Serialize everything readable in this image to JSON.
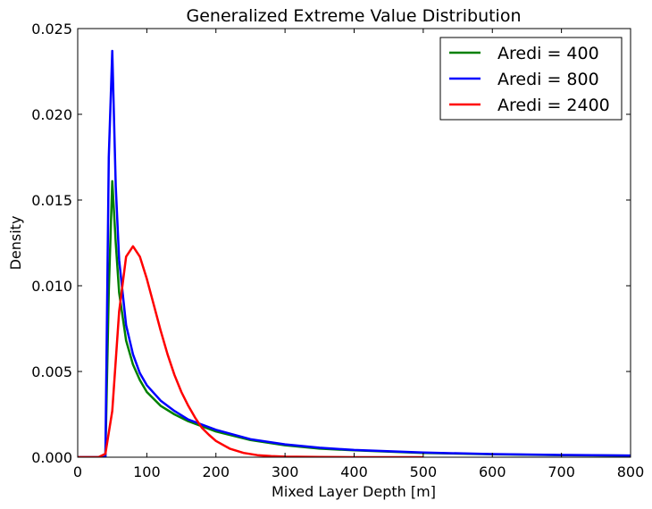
{
  "chart_data": {
    "type": "line",
    "title": "Generalized Extreme Value Distribution",
    "xlabel": "Mixed Layer Depth [m]",
    "ylabel": "Density",
    "xlim": [
      0,
      800
    ],
    "ylim": [
      0,
      0.025
    ],
    "x_ticks": [
      "0",
      "100",
      "200",
      "300",
      "400",
      "500",
      "600",
      "700",
      "800"
    ],
    "y_ticks": [
      "0.000",
      "0.005",
      "0.010",
      "0.015",
      "0.020",
      "0.025"
    ],
    "grid": false,
    "legend_position": "top-right",
    "series": [
      {
        "name": "Aredi = 400",
        "color": "#008000",
        "x": [
          0,
          30,
          40,
          45,
          50,
          55,
          60,
          70,
          80,
          90,
          100,
          120,
          140,
          160,
          180,
          200,
          250,
          300,
          350,
          400,
          500,
          600,
          700,
          800
        ],
        "y": [
          0,
          0,
          0,
          0.0097,
          0.0161,
          0.0125,
          0.0096,
          0.0068,
          0.0054,
          0.0045,
          0.0038,
          0.003,
          0.0025,
          0.0021,
          0.0018,
          0.0015,
          0.001,
          0.0007,
          0.0005,
          0.0004,
          0.00025,
          0.00017,
          0.00012,
          9e-05
        ]
      },
      {
        "name": "Aredi = 800",
        "color": "#0000ff",
        "x": [
          0,
          30,
          40,
          45,
          50,
          55,
          60,
          70,
          80,
          90,
          100,
          120,
          140,
          160,
          180,
          200,
          250,
          300,
          350,
          400,
          500,
          600,
          700,
          800
        ],
        "y": [
          0,
          0,
          0,
          0.0175,
          0.0237,
          0.0158,
          0.0115,
          0.0077,
          0.006,
          0.0049,
          0.0042,
          0.0033,
          0.0027,
          0.0022,
          0.0019,
          0.0016,
          0.00105,
          0.00075,
          0.00055,
          0.00042,
          0.00027,
          0.00018,
          0.00013,
          0.0001
        ]
      },
      {
        "name": "Aredi = 2400",
        "color": "#ff0000",
        "x": [
          0,
          30,
          40,
          50,
          60,
          70,
          80,
          90,
          100,
          110,
          120,
          130,
          140,
          150,
          160,
          170,
          180,
          190,
          200,
          220,
          240,
          260,
          280,
          300,
          350,
          400,
          500
        ],
        "y": [
          0,
          0,
          0.0002,
          0.0027,
          0.0085,
          0.0117,
          0.0123,
          0.0117,
          0.0104,
          0.0089,
          0.0074,
          0.006,
          0.0048,
          0.0038,
          0.003,
          0.0023,
          0.0017,
          0.0013,
          0.00095,
          0.0005,
          0.00025,
          0.00012,
          6e-05,
          3e-05,
          1e-05,
          0,
          0
        ]
      }
    ]
  }
}
